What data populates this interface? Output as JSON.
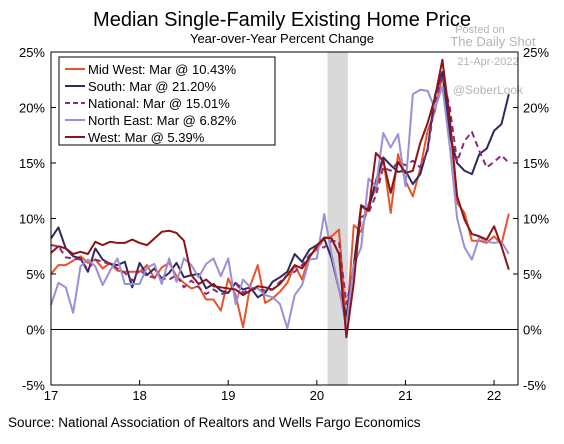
{
  "chart_data": {
    "type": "line",
    "title": "Median Single-Family Existing Home Price",
    "subtitle": "Year-over-Year Percent Change",
    "source": "Source: National Association of Realtors and Wells Fargo Economics",
    "watermark": {
      "posted": "Posted on",
      "publisher": "The Daily Shot",
      "date": "21-Apr-2022",
      "handle": "@SoberLook"
    },
    "ylim": [
      -5,
      25
    ],
    "y_ticks": [
      -5,
      0,
      5,
      10,
      15,
      20,
      25
    ],
    "y_tick_labels": [
      "-5%",
      "0%",
      "5%",
      "10%",
      "15%",
      "20%",
      "25%"
    ],
    "xlim": [
      2017.0,
      2022.27
    ],
    "x_ticks": [
      2017,
      2018,
      2019,
      2020,
      2021,
      2022
    ],
    "x_tick_labels": [
      "17",
      "18",
      "19",
      "20",
      "21",
      "22"
    ],
    "recession_band": [
      2020.12,
      2020.35
    ],
    "legend_position": "top-left",
    "colors": {
      "axis": "#000000",
      "recession": "#d9d9d9"
    },
    "x_start": 2017.0,
    "x_step": 0.0833333,
    "series": [
      {
        "name": "Mid West: Mar @ 10.43%",
        "color": "#e8542a",
        "dash": "solid",
        "values": [
          5.0,
          5.8,
          5.8,
          6.2,
          6.6,
          6.0,
          6.3,
          5.5,
          6.0,
          5.3,
          5.2,
          5.2,
          5.2,
          5.8,
          4.6,
          5.6,
          6.0,
          4.8,
          4.2,
          3.7,
          3.9,
          2.7,
          2.7,
          1.7,
          4.6,
          3.1,
          0.2,
          4.0,
          5.8,
          2.4,
          2.8,
          3.4,
          4.2,
          5.8,
          4.5,
          6.7,
          7.2,
          8.2,
          8.4,
          9.0,
          0.2,
          9.4,
          8.8,
          11.3,
          12.7,
          15.4,
          10.5,
          15.8,
          13.4,
          12.0,
          14.5,
          17.9,
          19.7,
          22.9,
          18.8,
          11.4,
          10.5,
          8.0,
          8.0,
          7.8,
          8.4,
          7.7,
          10.43
        ]
      },
      {
        "name": "South: Mar @ 21.20%",
        "color": "#2e2a5e",
        "dash": "solid",
        "values": [
          8.2,
          9.2,
          7.3,
          6.6,
          6.4,
          5.2,
          7.3,
          6.3,
          5.9,
          5.8,
          6.1,
          3.8,
          6.0,
          4.9,
          5.5,
          4.6,
          5.1,
          6.0,
          4.7,
          4.9,
          5.0,
          3.7,
          4.1,
          3.5,
          3.3,
          4.2,
          3.6,
          3.8,
          2.9,
          3.3,
          4.3,
          4.7,
          5.2,
          6.8,
          6.1,
          7.2,
          7.6,
          8.2,
          6.4,
          3.6,
          1.2,
          5.8,
          11.2,
          10.8,
          13.4,
          15.5,
          14.8,
          14.2,
          14.3,
          13.1,
          14.0,
          16.3,
          21.1,
          23.2,
          17.5,
          15.0,
          14.3,
          14.0,
          15.8,
          16.3,
          17.9,
          18.5,
          21.2
        ]
      },
      {
        "name": "National: Mar @ 15.01%",
        "color": "#8c2a7d",
        "dash": "dash",
        "values": [
          7.6,
          7.5,
          6.5,
          6.4,
          6.3,
          5.4,
          6.3,
          6.1,
          5.9,
          5.5,
          5.1,
          4.4,
          5.4,
          4.8,
          4.7,
          4.6,
          4.5,
          4.9,
          3.8,
          4.4,
          3.8,
          3.2,
          3.6,
          3.2,
          3.3,
          4.2,
          3.3,
          3.7,
          3.6,
          3.5,
          3.6,
          4.3,
          4.9,
          5.2,
          5.8,
          6.7,
          7.4,
          7.4,
          8.0,
          7.9,
          2.3,
          5.3,
          10.1,
          10.5,
          12.1,
          14.6,
          14.3,
          15.1,
          14.8,
          15.2,
          14.6,
          16.1,
          20.5,
          22.9,
          20.0,
          15.1,
          17.0,
          17.8,
          16.1,
          14.6,
          15.1,
          15.7,
          15.01
        ]
      },
      {
        "name": "North East: Mar @ 6.82%",
        "color": "#9b8fd6",
        "dash": "solid",
        "values": [
          2.2,
          4.2,
          3.8,
          1.5,
          5.7,
          6.3,
          5.7,
          4.0,
          5.3,
          6.4,
          4.1,
          4.1,
          4.1,
          5.6,
          5.9,
          4.1,
          6.4,
          4.3,
          6.4,
          5.8,
          4.7,
          5.9,
          6.4,
          4.8,
          6.4,
          2.3,
          4.5,
          3.8,
          3.7,
          3.1,
          2.9,
          2.3,
          0.1,
          3.1,
          4.0,
          6.3,
          6.4,
          10.4,
          6.8,
          3.6,
          0.3,
          5.8,
          7.4,
          13.6,
          12.9,
          17.7,
          16.4,
          17.6,
          12.9,
          21.2,
          21.6,
          21.5,
          19.9,
          21.9,
          16.5,
          10.0,
          7.4,
          6.3,
          8.3,
          7.9,
          7.8,
          7.9,
          6.82
        ]
      },
      {
        "name": "West: Mar @ 5.39%",
        "color": "#8b1414",
        "dash": "solid",
        "values": [
          6.9,
          7.5,
          7.3,
          6.8,
          7.0,
          6.8,
          7.9,
          7.6,
          7.9,
          7.8,
          7.8,
          8.1,
          7.8,
          7.6,
          8.2,
          8.8,
          8.9,
          8.7,
          8.0,
          4.9,
          4.1,
          4.5,
          3.9,
          3.8,
          3.7,
          3.6,
          3.1,
          3.5,
          3.9,
          3.8,
          3.6,
          4.1,
          4.9,
          5.8,
          5.5,
          6.5,
          7.5,
          8.3,
          8.2,
          6.8,
          -0.7,
          4.2,
          11.1,
          10.7,
          15.9,
          15.2,
          12.3,
          15.1,
          14.1,
          14.3,
          16.8,
          18.6,
          20.9,
          24.3,
          19.0,
          12.0,
          9.9,
          8.6,
          8.4,
          8.1,
          9.3,
          7.5,
          5.39
        ]
      }
    ]
  }
}
